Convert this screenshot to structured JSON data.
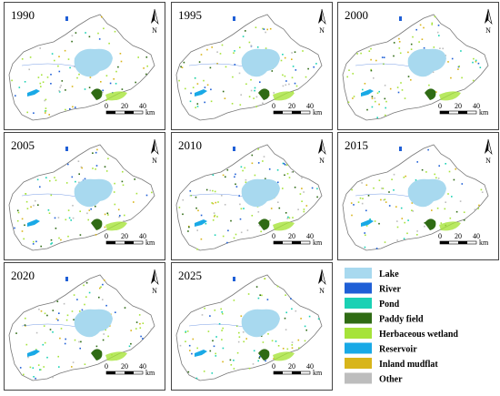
{
  "panels": [
    {
      "year": "1990"
    },
    {
      "year": "1995"
    },
    {
      "year": "2000"
    },
    {
      "year": "2005"
    },
    {
      "year": "2010"
    },
    {
      "year": "2015"
    },
    {
      "year": "2020"
    },
    {
      "year": "2025"
    }
  ],
  "north_label": "N",
  "scale": {
    "ticks": [
      "0",
      "20",
      "40"
    ],
    "unit": "km"
  },
  "legend": [
    {
      "label": "Lake",
      "color": "#a8d9ef"
    },
    {
      "label": "River",
      "color": "#1f5fd6"
    },
    {
      "label": "Pond",
      "color": "#1ad1b4"
    },
    {
      "label": "Paddy field",
      "color": "#2f6b14"
    },
    {
      "label": "Herbaceous wetland",
      "color": "#a6e33a"
    },
    {
      "label": "Reservoir",
      "color": "#19a9e6"
    },
    {
      "label": "Inland mudflat",
      "color": "#d8b51a"
    },
    {
      "label": "Other",
      "color": "#bdbdbd"
    }
  ]
}
